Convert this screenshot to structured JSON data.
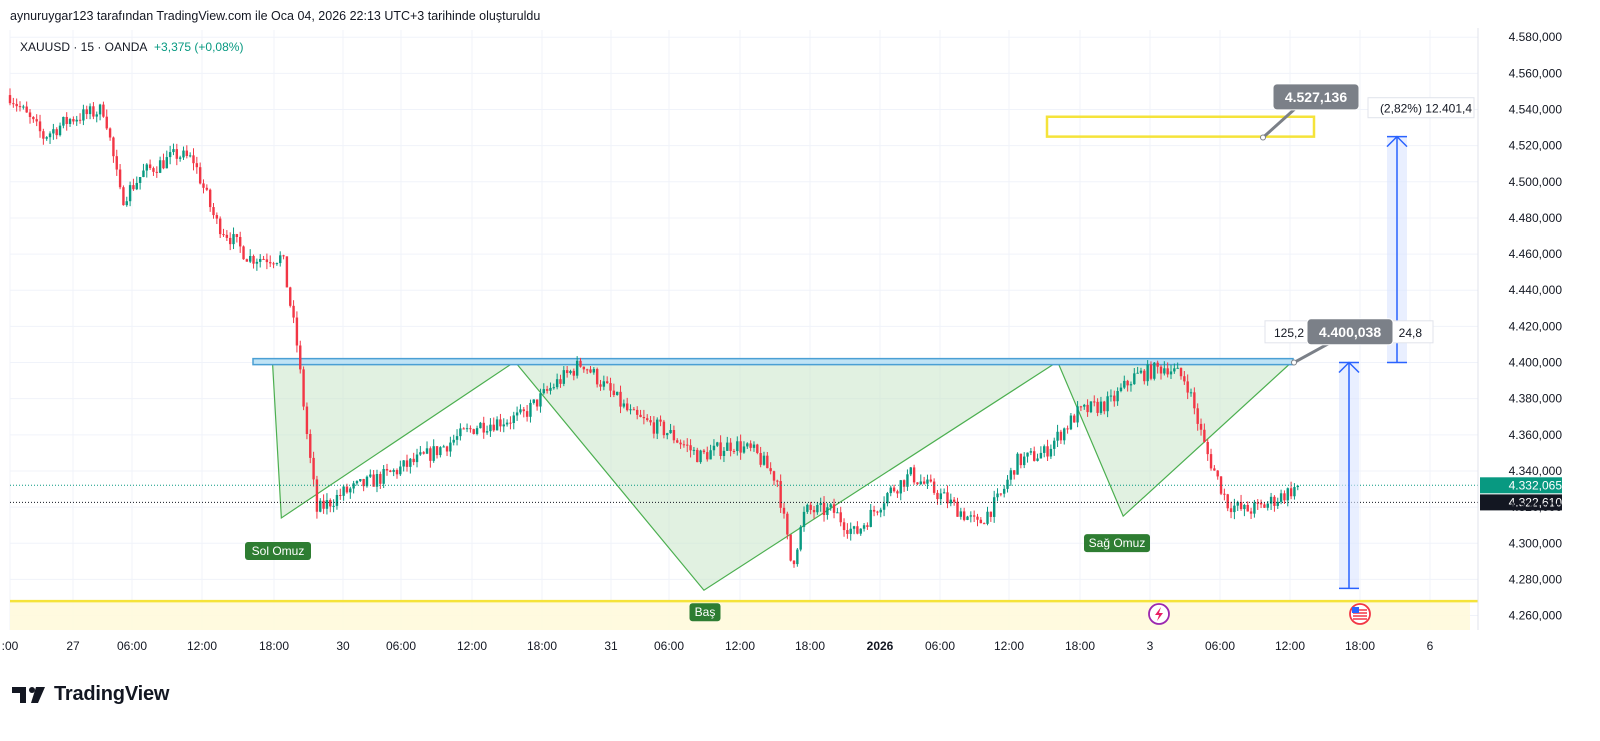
{
  "header": {
    "credit": "aynuruygar123 tarafından TradingView.com ile Oca 04, 2026 22:13 UTC+3 tarihinde oluşturuldu",
    "symbol": "XAUUSD · 15 · OANDA",
    "change": "+3,375 (+0,08%)"
  },
  "brand": {
    "name": "TradingView",
    "logo_icon": "tradingview-logo-icon"
  },
  "colors": {
    "up": "#089981",
    "down": "#f23645",
    "pattern_line": "#4caf50",
    "pattern_fill": "#c8e6c9",
    "neckline": "#4a9fd4",
    "target_box": "#f5e33a",
    "arrow": "#2962ff",
    "label_bg": "#7b8088"
  },
  "chart_data": {
    "type": "candlestick",
    "instrument": "XAUUSD",
    "interval": "15",
    "exchange": "OANDA",
    "y_axis": {
      "ticks": [
        "4.580,000",
        "4.560,000",
        "4.540,000",
        "4.520,000",
        "4.500,000",
        "4.480,000",
        "4.460,000",
        "4.440,000",
        "4.420,000",
        "4.400,000",
        "4.380,000",
        "4.360,000",
        "4.340,000",
        "4.320,000",
        "4.300,000",
        "4.280,000",
        "4.260,000"
      ],
      "tick_values": [
        4580,
        4560,
        4540,
        4520,
        4500,
        4480,
        4460,
        4440,
        4420,
        4400,
        4380,
        4360,
        4340,
        4320,
        4300,
        4280,
        4260
      ],
      "range": [
        4252,
        4584
      ]
    },
    "x_axis": {
      "ticks": [
        ":00",
        "27",
        "06:00",
        "12:00",
        "18:00",
        "30",
        "06:00",
        "12:00",
        "18:00",
        "31",
        "06:00",
        "12:00",
        "18:00",
        "2026",
        "06:00",
        "12:00",
        "18:00",
        "3",
        "06:00",
        "12:00",
        "18:00",
        "6"
      ],
      "bold": [
        false,
        false,
        false,
        false,
        false,
        false,
        false,
        false,
        false,
        false,
        false,
        false,
        false,
        true,
        false,
        false,
        false,
        false,
        false,
        false,
        false,
        false
      ]
    },
    "price_path": [
      [
        0,
        4548
      ],
      [
        30,
        4525
      ],
      [
        55,
        4535
      ],
      [
        85,
        4540
      ],
      [
        100,
        4490
      ],
      [
        120,
        4505
      ],
      [
        150,
        4515
      ],
      [
        165,
        4512
      ],
      [
        185,
        4478
      ],
      [
        215,
        4458
      ],
      [
        245,
        4458
      ],
      [
        258,
        4410
      ],
      [
        268,
        4355
      ],
      [
        276,
        4318
      ],
      [
        300,
        4328
      ],
      [
        340,
        4338
      ],
      [
        380,
        4350
      ],
      [
        420,
        4365
      ],
      [
        460,
        4370
      ],
      [
        490,
        4388
      ],
      [
        515,
        4400
      ],
      [
        530,
        4390
      ],
      [
        560,
        4370
      ],
      [
        590,
        4362
      ],
      [
        620,
        4348
      ],
      [
        650,
        4355
      ],
      [
        670,
        4350
      ],
      [
        690,
        4335
      ],
      [
        703,
        4287
      ],
      [
        715,
        4318
      ],
      [
        740,
        4318
      ],
      [
        760,
        4305
      ],
      [
        790,
        4328
      ],
      [
        810,
        4338
      ],
      [
        840,
        4325
      ],
      [
        870,
        4310
      ],
      [
        890,
        4325
      ],
      [
        905,
        4345
      ],
      [
        930,
        4350
      ],
      [
        960,
        4372
      ],
      [
        990,
        4378
      ],
      [
        1010,
        4392
      ],
      [
        1040,
        4398
      ],
      [
        1058,
        4390
      ],
      [
        1075,
        4352
      ],
      [
        1095,
        4322
      ],
      [
        1110,
        4318
      ],
      [
        1125,
        4320
      ],
      [
        1140,
        4325
      ],
      [
        1160,
        4332
      ]
    ],
    "price_lines": [
      {
        "label": "4.332,065",
        "value": 4332.065,
        "color": "#089981"
      },
      {
        "label": "4.322,610",
        "value": 4322.61,
        "color": "#131722"
      }
    ],
    "annotations": {
      "left_shoulder": {
        "label": "Sol Omuz",
        "value": 4314
      },
      "head": {
        "label": "Baş",
        "value": 4274
      },
      "right_shoulder": {
        "label": "Sağ Omuz",
        "value": 4315
      },
      "neckline": {
        "value": 4400.5
      },
      "support_line": {
        "value": 4268
      },
      "target_box": {
        "from": 4525,
        "to": 4536
      },
      "target_label": "4.527,136",
      "target_stat": "(2,82%) 12.401,4",
      "entry_label": "4.400,038",
      "entry_stat_left": "125,2",
      "entry_stat_right": "24,8",
      "measure_arrow_low": {
        "from": 4275,
        "to": 4400
      },
      "measure_arrow_high": {
        "from": 4400,
        "to": 4525
      }
    }
  }
}
